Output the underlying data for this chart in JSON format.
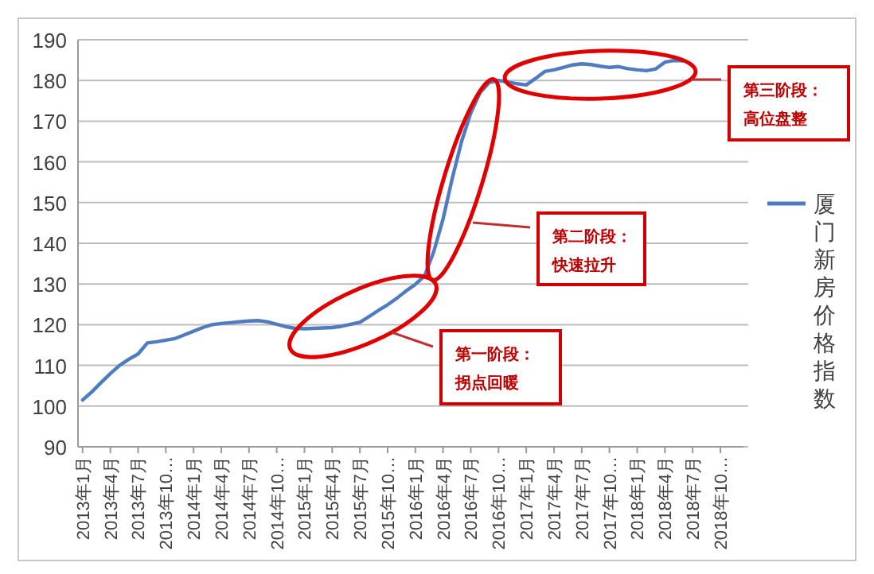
{
  "chart_data": {
    "type": "line",
    "categories": [
      "2013年1月",
      null,
      null,
      "2013年4月",
      null,
      null,
      "2013年7月",
      null,
      null,
      "2013年10…",
      null,
      null,
      "2014年1月",
      null,
      null,
      "2014年4月",
      null,
      null,
      "2014年7月",
      null,
      null,
      "2014年10…",
      null,
      null,
      "2015年1月",
      null,
      null,
      "2015年4月",
      null,
      null,
      "2015年7月",
      null,
      null,
      "2015年10…",
      null,
      null,
      "2016年1月",
      null,
      null,
      "2016年4月",
      null,
      null,
      "2016年7月",
      null,
      null,
      "2016年10…",
      null,
      null,
      "2017年1月",
      null,
      null,
      "2017年4月",
      null,
      null,
      "2017年7月",
      null,
      null,
      "2017年10…",
      null,
      null,
      "2018年1月",
      null,
      null,
      "2018年4月",
      null,
      null,
      "2018年7月",
      null,
      null,
      "2018年10…",
      null,
      null
    ],
    "series": [
      {
        "name": "厦门新房价格指数",
        "color": "#4f7cc0",
        "values": [
          101.5,
          103.5,
          105.8,
          108,
          110,
          111.5,
          112.8,
          115.5,
          115.8,
          116.2,
          116.6,
          117.5,
          118.4,
          119.3,
          120,
          120.3,
          120.5,
          120.7,
          120.9,
          121,
          120.7,
          120.1,
          119.5,
          119.1,
          119,
          119.1,
          119.2,
          119.3,
          119.6,
          120.1,
          120.6,
          122,
          123.5,
          124.9,
          126.5,
          128.3,
          129.9,
          132,
          138,
          146,
          156,
          165,
          172,
          177,
          179.5,
          180,
          179.6,
          179.2,
          178.9,
          180.5,
          182.2,
          182.6,
          183.2,
          183.8,
          184.1,
          183.9,
          183.5,
          183.2,
          183.4,
          182.9,
          182.6,
          182.4,
          182.8,
          184.5,
          184.9,
          184.8,
          null,
          null,
          null,
          null,
          null,
          null
        ]
      }
    ],
    "ylim": [
      90,
      190
    ],
    "yticks": [
      90,
      100,
      110,
      120,
      130,
      140,
      150,
      160,
      170,
      180,
      190
    ],
    "grid": "y",
    "legend": "right",
    "marker": "none",
    "line_style": "solid",
    "annotations": [
      "第一阶段：",
      "拐点回暖",
      "第二阶段：",
      "快速拉升",
      "第三阶段：",
      "高位盘整"
    ]
  }
}
